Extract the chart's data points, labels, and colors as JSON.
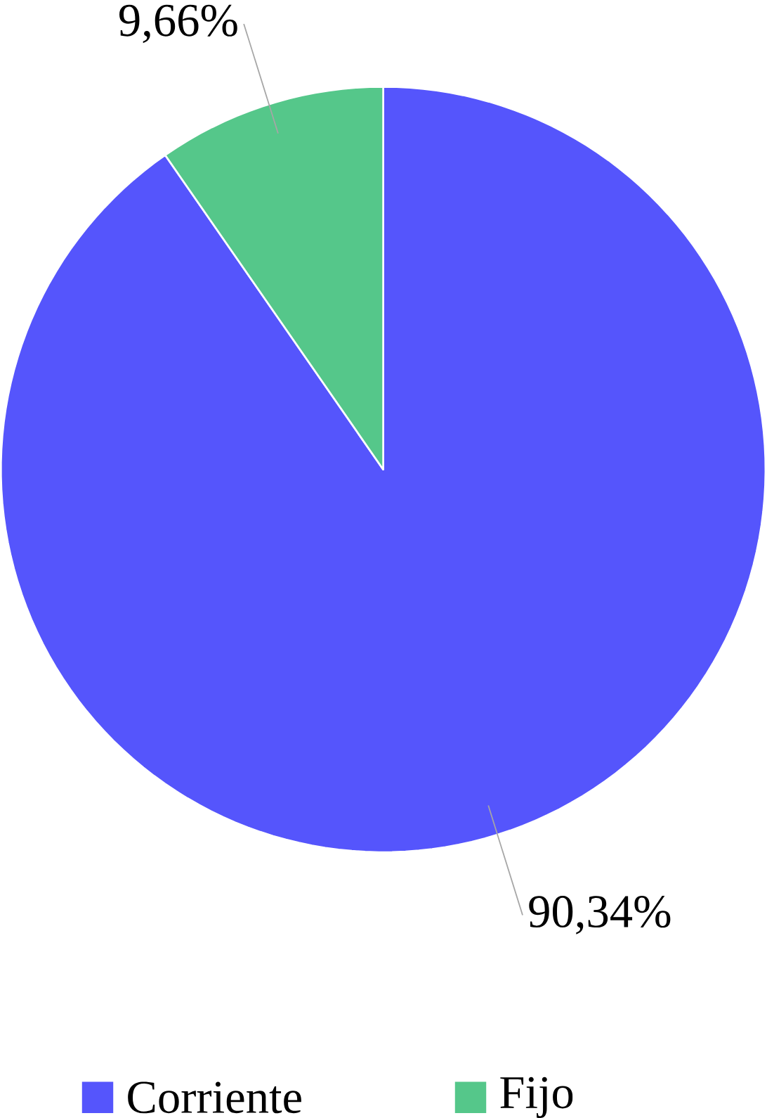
{
  "chart_data": {
    "type": "pie",
    "categories": [
      "Corriente",
      "Fijo"
    ],
    "values": [
      90.34,
      9.66
    ],
    "colors": [
      "#5555fc",
      "#55c78a"
    ],
    "value_labels": [
      "90,34%",
      "9,66%"
    ],
    "legend": "bottom"
  }
}
